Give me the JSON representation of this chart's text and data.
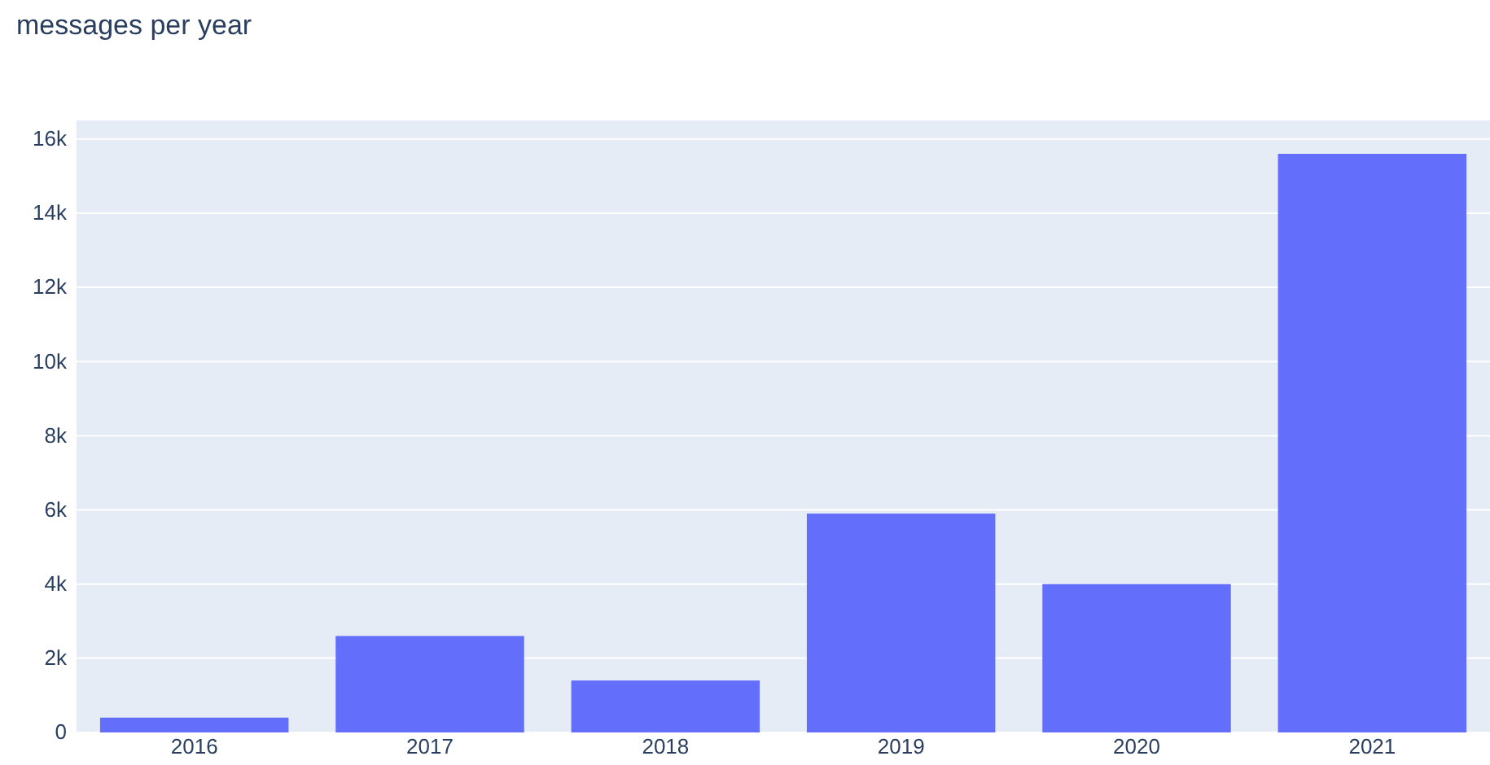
{
  "chart_data": {
    "type": "bar",
    "title": "messages per year",
    "categories": [
      "2016",
      "2017",
      "2018",
      "2019",
      "2020",
      "2021"
    ],
    "values": [
      400,
      2600,
      1400,
      5900,
      4000,
      15600
    ],
    "color": "#636efa",
    "ylim": [
      0,
      16500
    ],
    "yticks": [
      {
        "value": 0,
        "label": "0"
      },
      {
        "value": 2000,
        "label": "2k"
      },
      {
        "value": 4000,
        "label": "4k"
      },
      {
        "value": 6000,
        "label": "6k"
      },
      {
        "value": 8000,
        "label": "8k"
      },
      {
        "value": 10000,
        "label": "10k"
      },
      {
        "value": 12000,
        "label": "12k"
      },
      {
        "value": 14000,
        "label": "14k"
      },
      {
        "value": 16000,
        "label": "16k"
      }
    ],
    "grid": "y"
  }
}
